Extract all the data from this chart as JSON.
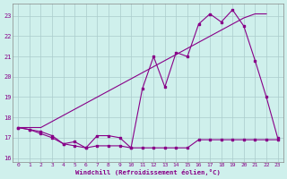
{
  "xlabel": "Windchill (Refroidissement éolien,°C)",
  "background_color": "#cff0ec",
  "grid_color": "#aacccc",
  "line_color": "#880088",
  "xlim": [
    -0.5,
    23.5
  ],
  "ylim": [
    15.8,
    23.6
  ],
  "yticks": [
    16,
    17,
    18,
    19,
    20,
    21,
    22,
    23
  ],
  "xticks": [
    0,
    1,
    2,
    3,
    4,
    5,
    6,
    7,
    8,
    9,
    10,
    11,
    12,
    13,
    14,
    15,
    16,
    17,
    18,
    19,
    20,
    21,
    22,
    23
  ],
  "series1_x": [
    0,
    1,
    2,
    3,
    4,
    5,
    6,
    7,
    8,
    9,
    10,
    11,
    12,
    13,
    14,
    15,
    16,
    17,
    18,
    19,
    20,
    21,
    22,
    23
  ],
  "series1_y": [
    17.5,
    17.5,
    17.5,
    17.8,
    18.1,
    18.4,
    18.7,
    19.0,
    19.3,
    19.6,
    19.9,
    20.2,
    20.5,
    20.8,
    21.1,
    21.4,
    21.7,
    22.0,
    22.3,
    22.6,
    22.9,
    23.1,
    23.1,
    null
  ],
  "series2_x": [
    0,
    1,
    2,
    3,
    4,
    5,
    6,
    7,
    8,
    9,
    10,
    11,
    12,
    13,
    14,
    15,
    16,
    17,
    18,
    19,
    20,
    21,
    22,
    23
  ],
  "series2_y": [
    17.5,
    17.4,
    17.3,
    17.1,
    16.7,
    16.8,
    16.5,
    17.1,
    17.1,
    17.0,
    16.5,
    19.4,
    21.0,
    19.5,
    21.2,
    21.0,
    22.6,
    23.1,
    22.7,
    23.3,
    22.5,
    20.8,
    19.0,
    17.0
  ],
  "series3_x": [
    0,
    1,
    2,
    3,
    4,
    5,
    6,
    7,
    8,
    9,
    10,
    11,
    12,
    13,
    14,
    15,
    16,
    17,
    18,
    19,
    20,
    21,
    22,
    23
  ],
  "series3_y": [
    17.5,
    17.4,
    17.2,
    17.0,
    16.7,
    16.6,
    16.5,
    16.6,
    16.6,
    16.6,
    16.5,
    16.5,
    16.5,
    16.5,
    16.5,
    16.5,
    16.9,
    16.9,
    16.9,
    16.9,
    16.9,
    16.9,
    16.9,
    16.9
  ]
}
